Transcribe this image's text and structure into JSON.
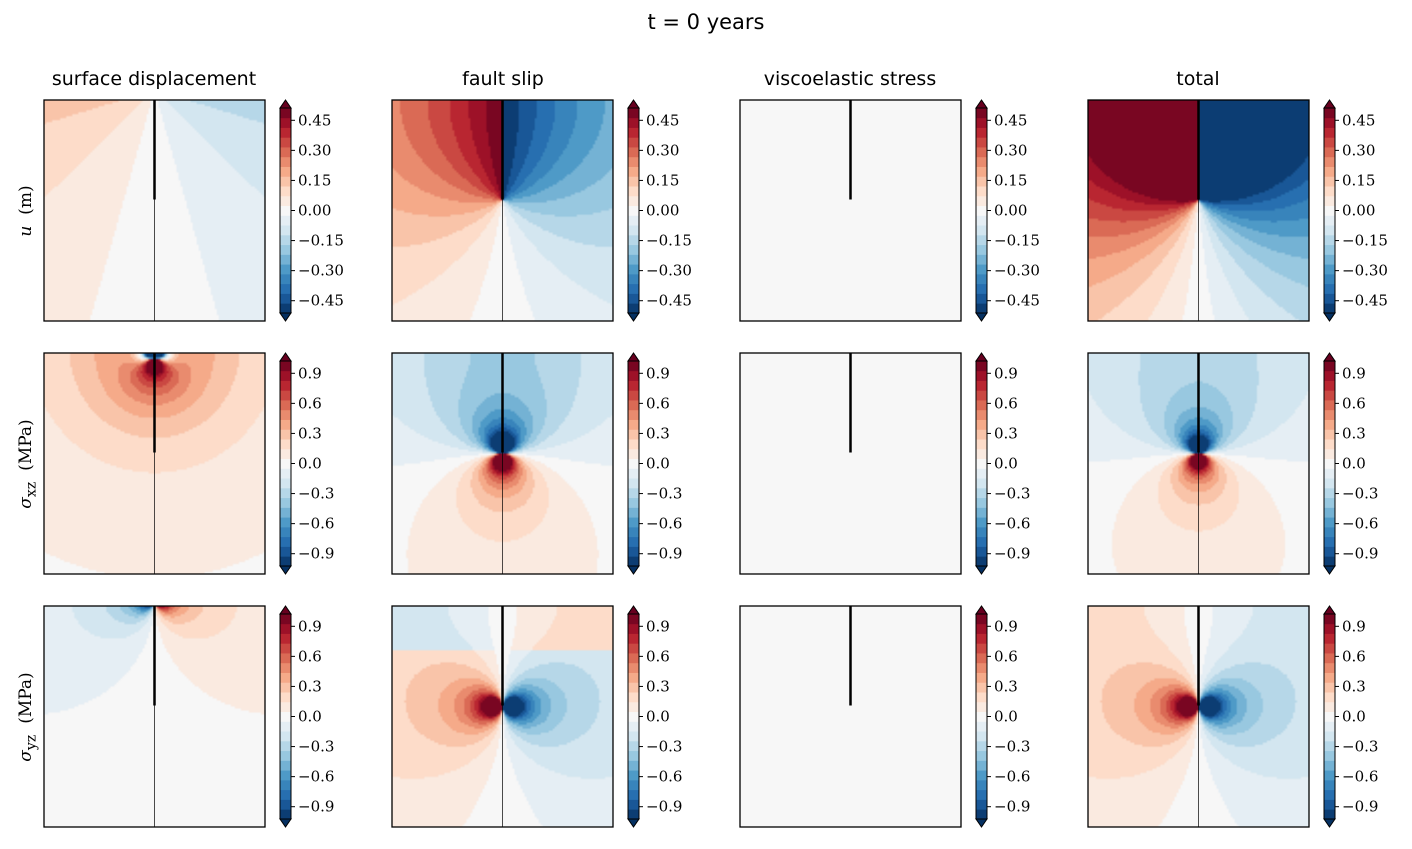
{
  "title": "t = 0 years",
  "columns": [
    {
      "title": "surface displacement"
    },
    {
      "title": "fault slip"
    },
    {
      "title": "viscoelastic stress"
    },
    {
      "title": "total"
    }
  ],
  "rows": [
    {
      "label_main": "u",
      "label_sub": "",
      "label_unit": "(m)"
    },
    {
      "label_main": "σ",
      "label_sub": "xz",
      "label_unit": "(MPa)"
    },
    {
      "label_main": "σ",
      "label_sub": "yz",
      "label_unit": "(MPa)"
    }
  ],
  "chart_data": {
    "type": "heatmap",
    "colormap": "RdBu_r",
    "colors": [
      "#053061",
      "#2166ac",
      "#4393c3",
      "#92c5de",
      "#d1e5f0",
      "#f7f7f7",
      "#fddbc7",
      "#f4a582",
      "#d6604d",
      "#b2182b",
      "#67001f"
    ],
    "rows": [
      {
        "quantity": "u",
        "unit": "m",
        "colorbar_ticks": [
          "0.45",
          "0.30",
          "0.15",
          "0.00",
          "−0.15",
          "−0.30",
          "−0.45"
        ],
        "vmin": -0.5,
        "vmax": 0.5,
        "panels": [
          {
            "column": "surface displacement",
            "field": "screw_dislocation_u",
            "amp": 0.5,
            "offset_depth": 1.0
          },
          {
            "column": "fault slip",
            "field": "screw_dislocation_u",
            "amp": 0.5,
            "offset_depth": 0.0
          },
          {
            "column": "viscoelastic stress",
            "field": "zero"
          },
          {
            "column": "total",
            "field": "screw_dislocation_u",
            "amp": 1.0,
            "offset_depth": 0.0
          }
        ]
      },
      {
        "quantity": "σxz",
        "unit": "MPa",
        "colorbar_ticks": [
          "0.9",
          "0.6",
          "0.3",
          "0.0",
          "−0.3",
          "−0.6",
          "−0.9"
        ],
        "vmin": -1.0,
        "vmax": 1.0,
        "panels": [
          {
            "column": "surface displacement",
            "field": "sxz_surface"
          },
          {
            "column": "fault slip",
            "field": "sxz_slip"
          },
          {
            "column": "viscoelastic stress",
            "field": "zero"
          },
          {
            "column": "total",
            "field": "sxz_total"
          }
        ]
      },
      {
        "quantity": "σyz",
        "unit": "MPa",
        "colorbar_ticks": [
          "0.9",
          "0.6",
          "0.3",
          "0.0",
          "−0.3",
          "−0.6",
          "−0.9"
        ],
        "vmin": -1.0,
        "vmax": 1.0,
        "panels": [
          {
            "column": "surface displacement",
            "field": "syz_surface"
          },
          {
            "column": "fault slip",
            "field": "syz_slip"
          },
          {
            "column": "viscoelastic stress",
            "field": "zero"
          },
          {
            "column": "total",
            "field": "syz_total"
          }
        ]
      }
    ],
    "fault": {
      "depth_fraction": 0.45
    },
    "levels": 21
  }
}
